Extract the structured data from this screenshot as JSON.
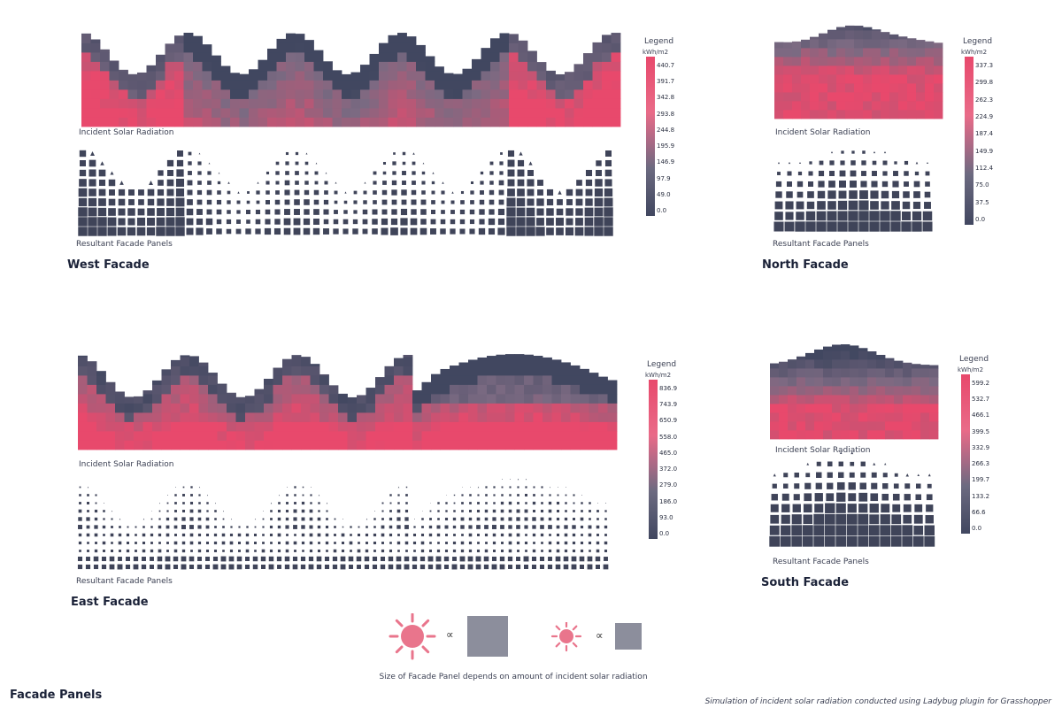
{
  "colors": {
    "high": "#e8496c",
    "mid": "#e96b88",
    "low": "#414760",
    "panel": "#3f4459",
    "explain_panel": "#8c8e9c",
    "sun": "#e9758c"
  },
  "facades": [
    {
      "id": "west",
      "title": "West Facade",
      "radiation_caption": "Incident Solar Radiation",
      "panels_caption": "Resultant Facade Panels",
      "legend": {
        "title": "Legend",
        "unit": "kWh/m2",
        "ticks": [
          "440.7",
          "391.7",
          "342.8",
          "293.8",
          "244.8",
          "195.9",
          "146.9",
          "97.9",
          "49.0",
          "0.0"
        ]
      }
    },
    {
      "id": "north",
      "title": "North Facade",
      "radiation_caption": "Incident Solar Radiation",
      "panels_caption": "Resultant Facade Panels",
      "legend": {
        "title": "Legend",
        "unit": "kWh/m2",
        "ticks": [
          "337.3",
          "299.8",
          "262.3",
          "224.9",
          "187.4",
          "149.9",
          "112.4",
          "75.0",
          "37.5",
          "0.0"
        ]
      }
    },
    {
      "id": "east",
      "title": "East Facade",
      "radiation_caption": "Incident Solar Radiation",
      "panels_caption": "Resultant Facade Panels",
      "legend": {
        "title": "Legend",
        "unit": "kWh/m2",
        "ticks": [
          "836.9",
          "743.9",
          "650.9",
          "558.0",
          "465.0",
          "372.0",
          "279.0",
          "186.0",
          "93.0",
          "0.0"
        ]
      }
    },
    {
      "id": "south",
      "title": "South Facade",
      "radiation_caption": "Incident Solar Radiation",
      "panels_caption": "Resultant Facade Panels",
      "legend": {
        "title": "Legend",
        "unit": "kWh/m2",
        "ticks": [
          "599.2",
          "532.7",
          "466.1",
          "399.5",
          "332.9",
          "266.3",
          "199.7",
          "133.2",
          "66.6",
          "0.0"
        ]
      }
    }
  ],
  "explanation": {
    "symbol": "∝",
    "text": "Size of Facade Panel depends on amount of incident solar radiation"
  },
  "page_title": "Facade Panels",
  "credit": "Simulation of incident solar radiation conducted using Ladybug plugin for Grasshopper"
}
